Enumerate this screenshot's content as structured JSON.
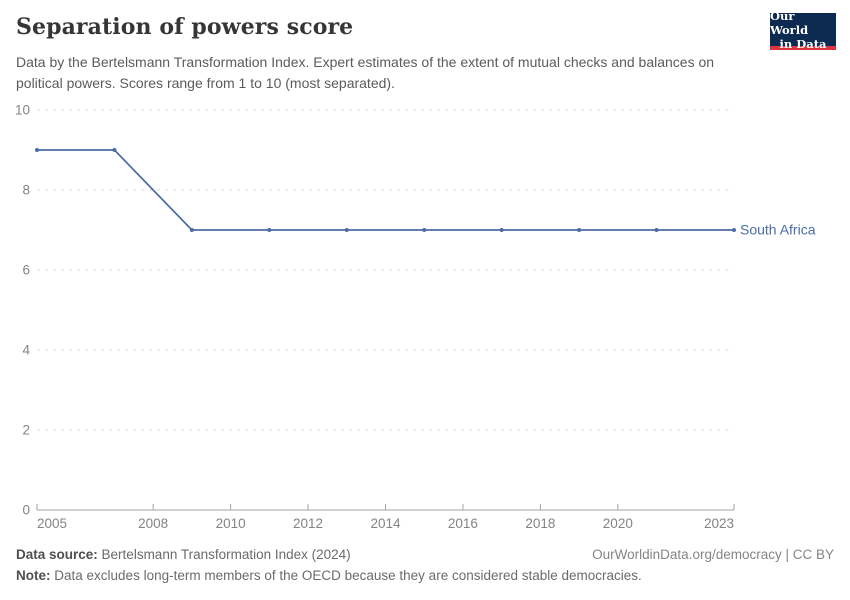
{
  "header": {
    "title": "Separation of powers score",
    "subtitle": "Data by the Bertelsmann Transformation Index. Expert estimates of the extent of mutual checks and balances on political powers. Scores range from 1 to 10 (most separated).",
    "logo": {
      "line1": "Our World",
      "line2": "in Data",
      "bg_color": "#0d2b51",
      "accent_color": "#dc3540"
    }
  },
  "chart_data": {
    "type": "line",
    "title": "Separation of powers score",
    "xlabel": "",
    "ylabel": "",
    "series": [
      {
        "name": "South Africa",
        "x": [
          2005,
          2007,
          2009,
          2011,
          2013,
          2015,
          2017,
          2019,
          2021,
          2023
        ],
        "values": [
          9,
          9,
          7,
          7,
          7,
          7,
          7,
          7,
          7,
          7
        ],
        "color": "#4c6ca6"
      }
    ],
    "x_ticks": [
      2005,
      2008,
      2010,
      2012,
      2014,
      2016,
      2018,
      2020,
      2023
    ],
    "y_ticks": [
      0,
      2,
      4,
      6,
      8,
      10
    ],
    "xlim": [
      2005,
      2023
    ],
    "ylim": [
      0,
      10
    ],
    "grid": "horizontal-dashed",
    "legend_position": "end-of-line-label",
    "colors": {
      "line": "#4c6ca6",
      "gridline": "#dcdcdc",
      "axis_line": "#a3a3a3",
      "tick_label": "#848484"
    }
  },
  "footer": {
    "source_label": "Data source:",
    "source_value": "Bertelsmann Transformation Index (2024)",
    "link": "OurWorldinData.org/democracy | CC BY",
    "note_label": "Note:",
    "note_value": "Data excludes long-term members of the OECD because they are considered stable democracies."
  }
}
